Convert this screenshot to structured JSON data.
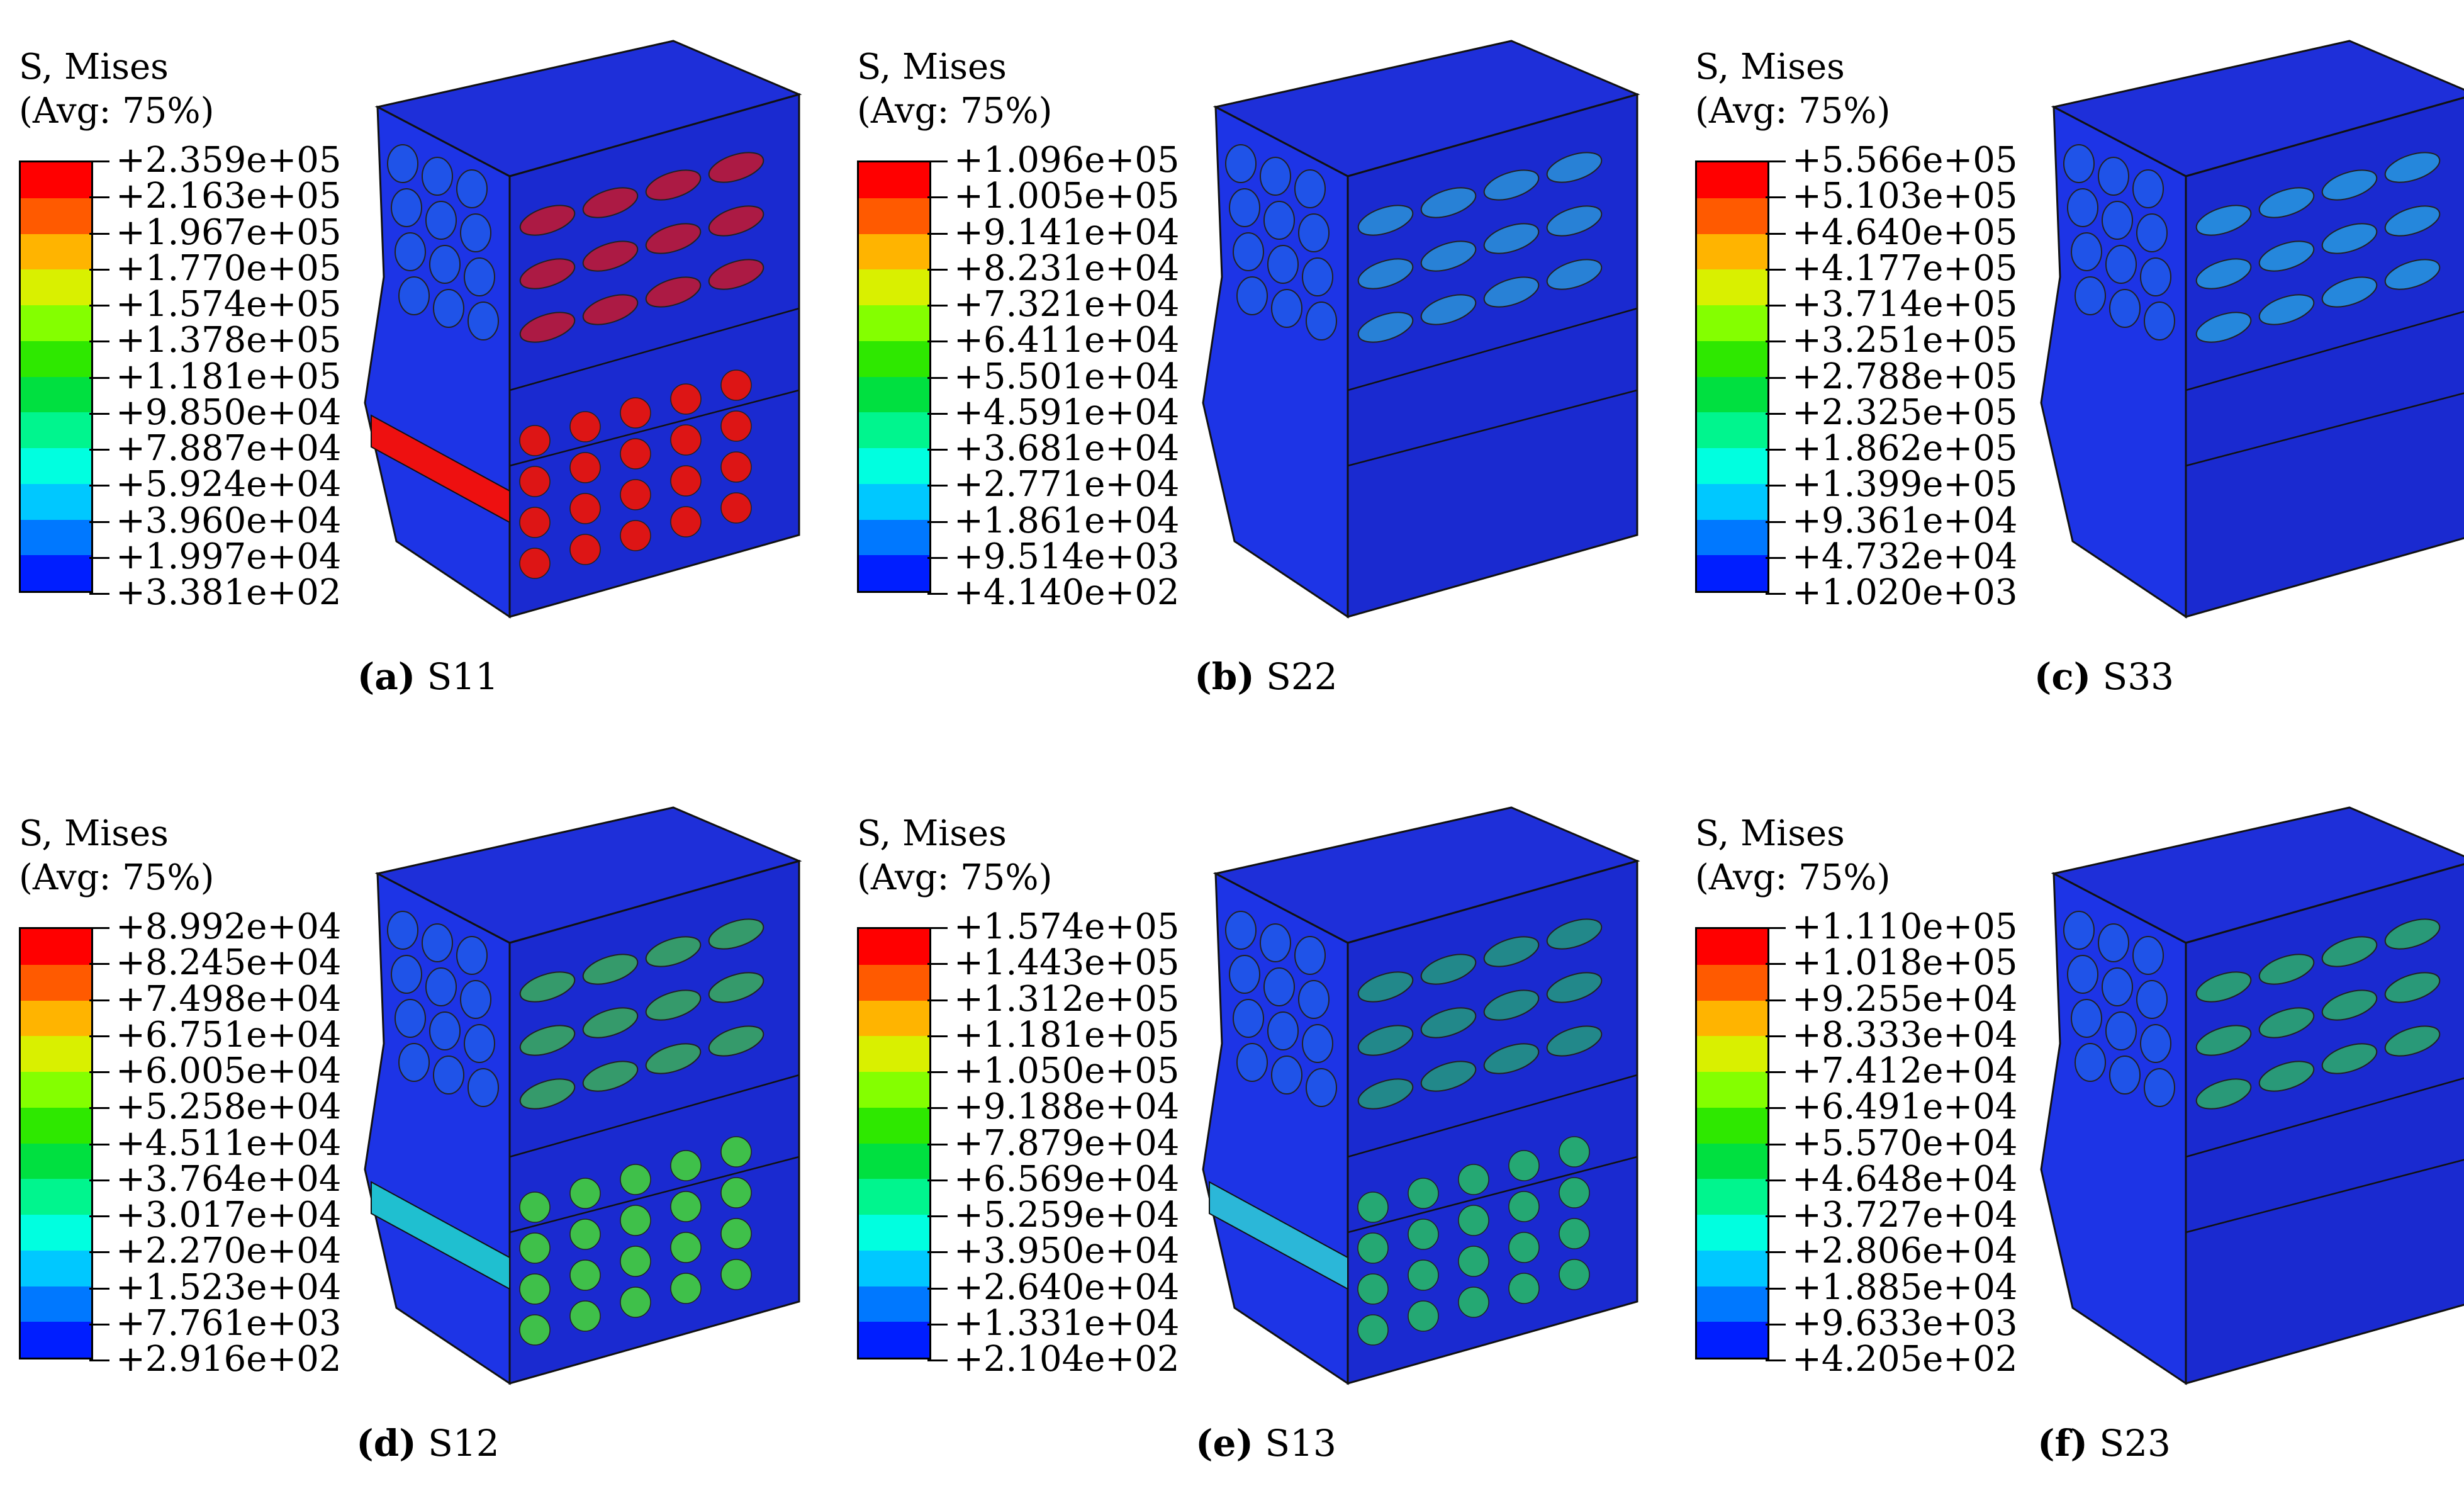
{
  "legend_colors": [
    "#ff0000",
    "#ff5a00",
    "#ffb400",
    "#d9f000",
    "#84ff00",
    "#2ee800",
    "#00e040",
    "#00f58e",
    "#00ffe0",
    "#00c8ff",
    "#0078ff",
    "#001eff"
  ],
  "panels": [
    {
      "legend_title_1": "S, Mises",
      "legend_title_2": "(Avg: 75%)",
      "ticks": [
        "+2.359e+05",
        "+2.163e+05",
        "+1.967e+05",
        "+1.770e+05",
        "+1.574e+05",
        "+1.378e+05",
        "+1.181e+05",
        "+9.850e+04",
        "+7.887e+04",
        "+5.924e+04",
        "+3.960e+04",
        "+1.997e+04",
        "+3.381e+02"
      ],
      "caption_label": "(a)",
      "caption_text": "S11"
    },
    {
      "legend_title_1": "S, Mises",
      "legend_title_2": "(Avg: 75%)",
      "ticks": [
        "+1.096e+05",
        "+1.005e+05",
        "+9.141e+04",
        "+8.231e+04",
        "+7.321e+04",
        "+6.411e+04",
        "+5.501e+04",
        "+4.591e+04",
        "+3.681e+04",
        "+2.771e+04",
        "+1.861e+04",
        "+9.514e+03",
        "+4.140e+02"
      ],
      "caption_label": "(b)",
      "caption_text": "S22"
    },
    {
      "legend_title_1": "S, Mises",
      "legend_title_2": "(Avg: 75%)",
      "ticks": [
        "+5.566e+05",
        "+5.103e+05",
        "+4.640e+05",
        "+4.177e+05",
        "+3.714e+05",
        "+3.251e+05",
        "+2.788e+05",
        "+2.325e+05",
        "+1.862e+05",
        "+1.399e+05",
        "+9.361e+04",
        "+4.732e+04",
        "+1.020e+03"
      ],
      "caption_label": "(c)",
      "caption_text": "S33"
    },
    {
      "legend_title_1": "S, Mises",
      "legend_title_2": "(Avg: 75%)",
      "ticks": [
        "+8.992e+04",
        "+8.245e+04",
        "+7.498e+04",
        "+6.751e+04",
        "+6.005e+04",
        "+5.258e+04",
        "+4.511e+04",
        "+3.764e+04",
        "+3.017e+04",
        "+2.270e+04",
        "+1.523e+04",
        "+7.761e+03",
        "+2.916e+02"
      ],
      "caption_label": "(d)",
      "caption_text": "S12"
    },
    {
      "legend_title_1": "S, Mises",
      "legend_title_2": "(Avg: 75%)",
      "ticks": [
        "+1.574e+05",
        "+1.443e+05",
        "+1.312e+05",
        "+1.181e+05",
        "+1.050e+05",
        "+9.188e+04",
        "+7.879e+04",
        "+6.569e+04",
        "+5.259e+04",
        "+3.950e+04",
        "+2.640e+04",
        "+1.331e+04",
        "+2.104e+02"
      ],
      "caption_label": "(e)",
      "caption_text": "S13"
    },
    {
      "legend_title_1": "S, Mises",
      "legend_title_2": "(Avg: 75%)",
      "ticks": [
        "+1.110e+05",
        "+1.018e+05",
        "+9.255e+04",
        "+8.333e+04",
        "+7.412e+04",
        "+6.491e+04",
        "+5.570e+04",
        "+4.648e+04",
        "+3.727e+04",
        "+2.806e+04",
        "+1.885e+04",
        "+9.633e+03",
        "+4.205e+02"
      ],
      "caption_label": "(f)",
      "caption_text": "S23"
    }
  ]
}
